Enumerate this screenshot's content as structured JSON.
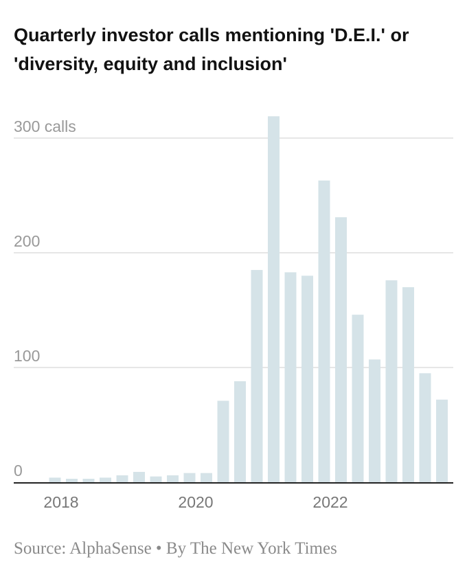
{
  "title": "Quarterly investor calls mentioning 'D.E.I.' or 'diversity, equity and inclusion'",
  "source": "Source: AlphaSense • By The New York Times",
  "colors": {
    "bar": "#d5e3e8",
    "grid": "#dedede",
    "axis": "#222222",
    "label": "#999999"
  },
  "chart_data": {
    "type": "bar",
    "title": "Quarterly investor calls mentioning 'D.E.I.' or 'diversity, equity and inclusion'",
    "xlabel": "",
    "ylabel": "",
    "ylim": [
      0,
      300
    ],
    "y_ticks": [
      {
        "value": 300,
        "label": "300 calls"
      },
      {
        "value": 200,
        "label": "200"
      },
      {
        "value": 100,
        "label": "100"
      },
      {
        "value": 0,
        "label": "0"
      }
    ],
    "x_ticks": [
      {
        "index": 0,
        "label": "2018"
      },
      {
        "index": 8,
        "label": "2020"
      },
      {
        "index": 16,
        "label": "2022"
      }
    ],
    "values": [
      4,
      3,
      3,
      4,
      6,
      9,
      5,
      6,
      8,
      8,
      71,
      88,
      185,
      319,
      183,
      180,
      263,
      231,
      146,
      107,
      176,
      170,
      95,
      72
    ],
    "grid": true,
    "legend": "none"
  }
}
